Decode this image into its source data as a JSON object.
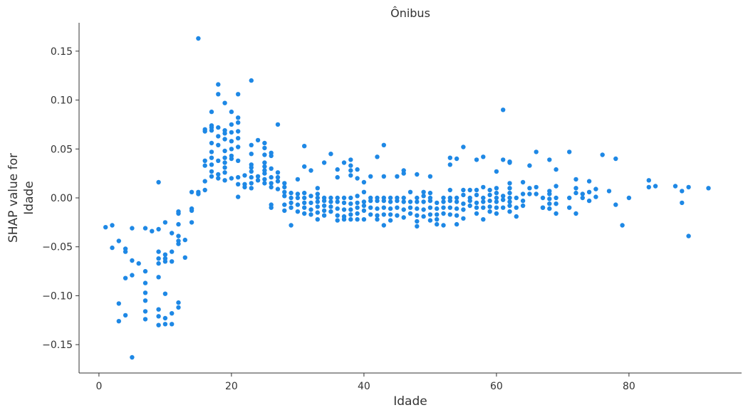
{
  "chart_data": {
    "type": "scatter",
    "title": "Ônibus",
    "xlabel": "Idade",
    "ylabel": "SHAP value for\nIdade",
    "xlim": [
      -3,
      97
    ],
    "ylim": [
      -0.179,
      0.179
    ],
    "x_ticks": [
      0,
      20,
      40,
      60,
      80
    ],
    "x_tick_labels": [
      "0",
      "20",
      "40",
      "60",
      "80"
    ],
    "y_ticks": [
      -0.15,
      -0.1,
      -0.05,
      0.0,
      0.05,
      0.1,
      0.15
    ],
    "y_tick_labels": [
      "−0.15",
      "−0.10",
      "−0.05",
      "0.00",
      "0.05",
      "0.10",
      "0.15"
    ],
    "grid": false,
    "color": "#1e88e5",
    "points": [
      [
        1,
        -0.03
      ],
      [
        2,
        -0.028
      ],
      [
        2,
        -0.051
      ],
      [
        3,
        -0.044
      ],
      [
        3,
        -0.108
      ],
      [
        3,
        -0.126
      ],
      [
        4,
        -0.052
      ],
      [
        4,
        -0.055
      ],
      [
        4,
        -0.082
      ],
      [
        4,
        -0.12
      ],
      [
        5,
        -0.031
      ],
      [
        5,
        -0.064
      ],
      [
        5,
        -0.079
      ],
      [
        5,
        -0.163
      ],
      [
        6,
        -0.067
      ],
      [
        7,
        -0.031
      ],
      [
        7,
        -0.075
      ],
      [
        7,
        -0.087
      ],
      [
        7,
        -0.097
      ],
      [
        7,
        -0.105
      ],
      [
        7,
        -0.116
      ],
      [
        7,
        -0.124
      ],
      [
        8,
        -0.034
      ],
      [
        9,
        0.016
      ],
      [
        9,
        -0.032
      ],
      [
        9,
        -0.055
      ],
      [
        9,
        -0.062
      ],
      [
        9,
        -0.067
      ],
      [
        9,
        -0.081
      ],
      [
        9,
        -0.114
      ],
      [
        9,
        -0.121
      ],
      [
        9,
        -0.13
      ],
      [
        10,
        -0.025
      ],
      [
        10,
        -0.058
      ],
      [
        10,
        -0.062
      ],
      [
        10,
        -0.065
      ],
      [
        10,
        -0.098
      ],
      [
        10,
        -0.123
      ],
      [
        10,
        -0.129
      ],
      [
        11,
        -0.036
      ],
      [
        11,
        -0.055
      ],
      [
        11,
        -0.065
      ],
      [
        11,
        -0.118
      ],
      [
        11,
        -0.129
      ],
      [
        12,
        -0.014
      ],
      [
        12,
        -0.016
      ],
      [
        12,
        -0.027
      ],
      [
        12,
        -0.039
      ],
      [
        12,
        -0.044
      ],
      [
        12,
        -0.047
      ],
      [
        12,
        -0.107
      ],
      [
        12,
        -0.112
      ],
      [
        13,
        -0.043
      ],
      [
        13,
        -0.061
      ],
      [
        14,
        0.006
      ],
      [
        14,
        -0.011
      ],
      [
        14,
        -0.013
      ],
      [
        14,
        -0.025
      ],
      [
        15,
        0.163
      ],
      [
        15,
        0.004
      ],
      [
        15,
        0.006
      ],
      [
        16,
        0.008
      ],
      [
        16,
        0.017
      ],
      [
        16,
        0.033
      ],
      [
        16,
        0.038
      ],
      [
        16,
        0.068
      ],
      [
        16,
        0.07
      ],
      [
        17,
        0.022
      ],
      [
        17,
        0.027
      ],
      [
        17,
        0.034
      ],
      [
        17,
        0.041
      ],
      [
        17,
        0.047
      ],
      [
        17,
        0.056
      ],
      [
        17,
        0.069
      ],
      [
        17,
        0.072
      ],
      [
        17,
        0.074
      ],
      [
        17,
        0.088
      ],
      [
        18,
        0.02
      ],
      [
        18,
        0.024
      ],
      [
        18,
        0.038
      ],
      [
        18,
        0.054
      ],
      [
        18,
        0.063
      ],
      [
        18,
        0.072
      ],
      [
        18,
        0.106
      ],
      [
        18,
        0.116
      ],
      [
        19,
        0.018
      ],
      [
        19,
        0.026
      ],
      [
        19,
        0.031
      ],
      [
        19,
        0.036
      ],
      [
        19,
        0.041
      ],
      [
        19,
        0.048
      ],
      [
        19,
        0.06
      ],
      [
        19,
        0.066
      ],
      [
        19,
        0.069
      ],
      [
        19,
        0.097
      ],
      [
        20,
        0.02
      ],
      [
        20,
        0.04
      ],
      [
        20,
        0.043
      ],
      [
        20,
        0.05
      ],
      [
        20,
        0.058
      ],
      [
        20,
        0.067
      ],
      [
        20,
        0.075
      ],
      [
        20,
        0.088
      ],
      [
        21,
        0.001
      ],
      [
        21,
        0.014
      ],
      [
        21,
        0.021
      ],
      [
        21,
        0.038
      ],
      [
        21,
        0.052
      ],
      [
        21,
        0.061
      ],
      [
        21,
        0.068
      ],
      [
        21,
        0.077
      ],
      [
        21,
        0.082
      ],
      [
        21,
        0.106
      ],
      [
        22,
        0.011
      ],
      [
        22,
        0.014
      ],
      [
        22,
        0.023
      ],
      [
        23,
        0.01
      ],
      [
        23,
        0.015
      ],
      [
        23,
        0.021
      ],
      [
        23,
        0.027
      ],
      [
        23,
        0.031
      ],
      [
        23,
        0.034
      ],
      [
        23,
        0.045
      ],
      [
        23,
        0.054
      ],
      [
        23,
        0.12
      ],
      [
        24,
        0.018
      ],
      [
        24,
        0.022
      ],
      [
        24,
        0.059
      ],
      [
        25,
        0.015
      ],
      [
        25,
        0.019
      ],
      [
        25,
        0.025
      ],
      [
        25,
        0.028
      ],
      [
        25,
        0.032
      ],
      [
        25,
        0.036
      ],
      [
        25,
        0.044
      ],
      [
        25,
        0.051
      ],
      [
        25,
        0.056
      ],
      [
        26,
        -0.007
      ],
      [
        26,
        -0.01
      ],
      [
        26,
        0.011
      ],
      [
        26,
        0.015
      ],
      [
        26,
        0.021
      ],
      [
        26,
        0.03
      ],
      [
        26,
        0.043
      ],
      [
        26,
        0.046
      ],
      [
        27,
        0.009
      ],
      [
        27,
        0.017
      ],
      [
        27,
        0.021
      ],
      [
        27,
        0.026
      ],
      [
        27,
        0.075
      ],
      [
        28,
        -0.007
      ],
      [
        28,
        -0.013
      ],
      [
        28,
        0.002
      ],
      [
        28,
        0.006
      ],
      [
        28,
        0.011
      ],
      [
        28,
        0.015
      ],
      [
        29,
        -0.028
      ],
      [
        29,
        -0.005
      ],
      [
        29,
        -0.01
      ],
      [
        29,
        0.0
      ],
      [
        29,
        0.005
      ],
      [
        30,
        -0.007
      ],
      [
        30,
        -0.014
      ],
      [
        30,
        0.0
      ],
      [
        30,
        0.004
      ],
      [
        30,
        0.019
      ],
      [
        31,
        -0.005
      ],
      [
        31,
        -0.01
      ],
      [
        31,
        -0.016
      ],
      [
        31,
        0.0
      ],
      [
        31,
        0.005
      ],
      [
        31,
        0.032
      ],
      [
        31,
        0.053
      ],
      [
        32,
        -0.005
      ],
      [
        32,
        -0.012
      ],
      [
        32,
        -0.017
      ],
      [
        32,
        0.002
      ],
      [
        32,
        0.028
      ],
      [
        33,
        -0.004
      ],
      [
        33,
        -0.009
      ],
      [
        33,
        -0.015
      ],
      [
        33,
        -0.022
      ],
      [
        33,
        0.0
      ],
      [
        33,
        0.004
      ],
      [
        33,
        0.01
      ],
      [
        34,
        -0.003
      ],
      [
        34,
        -0.008
      ],
      [
        34,
        -0.013
      ],
      [
        34,
        -0.018
      ],
      [
        34,
        0.0
      ],
      [
        34,
        0.036
      ],
      [
        35,
        -0.004
      ],
      [
        35,
        -0.009
      ],
      [
        35,
        -0.014
      ],
      [
        35,
        0.0
      ],
      [
        35,
        0.045
      ],
      [
        36,
        -0.004
      ],
      [
        36,
        -0.011
      ],
      [
        36,
        -0.018
      ],
      [
        36,
        -0.023
      ],
      [
        36,
        0.0
      ],
      [
        36,
        0.021
      ],
      [
        36,
        0.029
      ],
      [
        37,
        -0.005
      ],
      [
        37,
        -0.012
      ],
      [
        37,
        -0.019
      ],
      [
        37,
        -0.022
      ],
      [
        37,
        0.0
      ],
      [
        37,
        0.036
      ],
      [
        38,
        -0.006
      ],
      [
        38,
        -0.012
      ],
      [
        38,
        -0.017
      ],
      [
        38,
        -0.022
      ],
      [
        38,
        0.0
      ],
      [
        38,
        0.023
      ],
      [
        38,
        0.028
      ],
      [
        38,
        0.033
      ],
      [
        38,
        0.039
      ],
      [
        39,
        -0.005
      ],
      [
        39,
        -0.01
      ],
      [
        39,
        -0.016
      ],
      [
        39,
        -0.022
      ],
      [
        39,
        0.002
      ],
      [
        39,
        0.02
      ],
      [
        39,
        0.029
      ],
      [
        40,
        -0.004
      ],
      [
        40,
        -0.008
      ],
      [
        40,
        -0.013
      ],
      [
        40,
        -0.022
      ],
      [
        40,
        0.006
      ],
      [
        40,
        0.016
      ],
      [
        41,
        -0.003
      ],
      [
        41,
        -0.01
      ],
      [
        41,
        -0.017
      ],
      [
        41,
        0.0
      ],
      [
        41,
        0.022
      ],
      [
        42,
        -0.003
      ],
      [
        42,
        -0.011
      ],
      [
        42,
        -0.018
      ],
      [
        42,
        -0.022
      ],
      [
        42,
        0.0
      ],
      [
        42,
        0.042
      ],
      [
        43,
        -0.003
      ],
      [
        43,
        -0.01
      ],
      [
        43,
        -0.017
      ],
      [
        43,
        -0.028
      ],
      [
        43,
        0.0
      ],
      [
        43,
        0.022
      ],
      [
        43,
        0.054
      ],
      [
        44,
        -0.004
      ],
      [
        44,
        -0.011
      ],
      [
        44,
        -0.017
      ],
      [
        44,
        -0.023
      ],
      [
        44,
        0.0
      ],
      [
        45,
        -0.003
      ],
      [
        45,
        -0.01
      ],
      [
        45,
        -0.018
      ],
      [
        45,
        0.0
      ],
      [
        45,
        0.022
      ],
      [
        46,
        -0.004
      ],
      [
        46,
        -0.012
      ],
      [
        46,
        -0.02
      ],
      [
        46,
        0.0
      ],
      [
        46,
        0.028
      ],
      [
        46,
        0.025
      ],
      [
        47,
        -0.004
      ],
      [
        47,
        -0.01
      ],
      [
        47,
        -0.016
      ],
      [
        47,
        0.006
      ],
      [
        48,
        -0.004
      ],
      [
        48,
        -0.011
      ],
      [
        48,
        -0.018
      ],
      [
        48,
        -0.024
      ],
      [
        48,
        -0.029
      ],
      [
        48,
        0.0
      ],
      [
        48,
        0.024
      ],
      [
        49,
        -0.004
      ],
      [
        49,
        -0.012
      ],
      [
        49,
        -0.019
      ],
      [
        49,
        0.002
      ],
      [
        49,
        0.006
      ],
      [
        50,
        -0.003
      ],
      [
        50,
        -0.01
      ],
      [
        50,
        -0.017
      ],
      [
        50,
        -0.023
      ],
      [
        50,
        0.0
      ],
      [
        50,
        0.005
      ],
      [
        50,
        0.022
      ],
      [
        51,
        -0.005
      ],
      [
        51,
        -0.011
      ],
      [
        51,
        -0.017
      ],
      [
        51,
        -0.022
      ],
      [
        51,
        -0.027
      ],
      [
        52,
        -0.004
      ],
      [
        52,
        -0.01
      ],
      [
        52,
        -0.016
      ],
      [
        52,
        -0.028
      ],
      [
        52,
        0.0
      ],
      [
        53,
        -0.003
      ],
      [
        53,
        -0.01
      ],
      [
        53,
        -0.017
      ],
      [
        53,
        0.0
      ],
      [
        53,
        0.008
      ],
      [
        53,
        0.034
      ],
      [
        53,
        0.041
      ],
      [
        54,
        -0.004
      ],
      [
        54,
        -0.011
      ],
      [
        54,
        -0.018
      ],
      [
        54,
        -0.027
      ],
      [
        54,
        0.0
      ],
      [
        54,
        0.04
      ],
      [
        55,
        -0.006
      ],
      [
        55,
        -0.012
      ],
      [
        55,
        -0.021
      ],
      [
        55,
        0.003
      ],
      [
        55,
        0.008
      ],
      [
        55,
        0.052
      ],
      [
        56,
        -0.003
      ],
      [
        56,
        -0.008
      ],
      [
        56,
        0.0
      ],
      [
        56,
        0.008
      ],
      [
        57,
        -0.005
      ],
      [
        57,
        -0.01
      ],
      [
        57,
        -0.016
      ],
      [
        57,
        0.003
      ],
      [
        57,
        0.008
      ],
      [
        57,
        0.039
      ],
      [
        58,
        -0.004
      ],
      [
        58,
        -0.01
      ],
      [
        58,
        -0.022
      ],
      [
        58,
        0.0
      ],
      [
        58,
        0.011
      ],
      [
        58,
        0.042
      ],
      [
        59,
        -0.003
      ],
      [
        59,
        -0.009
      ],
      [
        59,
        -0.014
      ],
      [
        59,
        0.003
      ],
      [
        59,
        0.008
      ],
      [
        60,
        -0.004
      ],
      [
        60,
        -0.01
      ],
      [
        60,
        -0.016
      ],
      [
        60,
        0.0
      ],
      [
        60,
        0.005
      ],
      [
        60,
        0.01
      ],
      [
        60,
        0.027
      ],
      [
        61,
        0.09
      ],
      [
        61,
        -0.002
      ],
      [
        61,
        -0.01
      ],
      [
        61,
        0.002
      ],
      [
        61,
        0.039
      ],
      [
        62,
        -0.004
      ],
      [
        62,
        -0.008
      ],
      [
        62,
        -0.014
      ],
      [
        62,
        0.0
      ],
      [
        62,
        0.005
      ],
      [
        62,
        0.01
      ],
      [
        62,
        0.015
      ],
      [
        62,
        0.036
      ],
      [
        62,
        0.037
      ],
      [
        63,
        -0.019
      ],
      [
        63,
        0.0
      ],
      [
        63,
        -0.01
      ],
      [
        64,
        -0.008
      ],
      [
        64,
        -0.003
      ],
      [
        64,
        0.004
      ],
      [
        64,
        0.016
      ],
      [
        65,
        0.01
      ],
      [
        65,
        0.004
      ],
      [
        65,
        0.033
      ],
      [
        66,
        0.047
      ],
      [
        66,
        0.011
      ],
      [
        66,
        0.004
      ],
      [
        67,
        -0.01
      ],
      [
        67,
        0.0
      ],
      [
        67,
        -0.01
      ],
      [
        68,
        0.004
      ],
      [
        68,
        -0.001
      ],
      [
        68,
        -0.006
      ],
      [
        68,
        -0.011
      ],
      [
        68,
        0.007
      ],
      [
        68,
        0.039
      ],
      [
        69,
        -0.016
      ],
      [
        69,
        0.0
      ],
      [
        69,
        0.012
      ],
      [
        69,
        -0.006
      ],
      [
        69,
        0.029
      ],
      [
        71,
        0.0
      ],
      [
        71,
        -0.01
      ],
      [
        71,
        0.047
      ],
      [
        72,
        0.019
      ],
      [
        72,
        0.01
      ],
      [
        72,
        0.005
      ],
      [
        72,
        -0.016
      ],
      [
        73,
        0.0
      ],
      [
        73,
        0.004
      ],
      [
        74,
        0.017
      ],
      [
        74,
        0.006
      ],
      [
        74,
        -0.003
      ],
      [
        75,
        0.009
      ],
      [
        75,
        0.001
      ],
      [
        76,
        0.044
      ],
      [
        77,
        0.007
      ],
      [
        78,
        0.04
      ],
      [
        78,
        -0.007
      ],
      [
        79,
        -0.028
      ],
      [
        80,
        0.0
      ],
      [
        83,
        0.018
      ],
      [
        83,
        0.011
      ],
      [
        84,
        0.012
      ],
      [
        87,
        0.012
      ],
      [
        88,
        0.007
      ],
      [
        88,
        -0.005
      ],
      [
        89,
        0.011
      ],
      [
        89,
        -0.039
      ],
      [
        92,
        0.01
      ]
    ]
  }
}
